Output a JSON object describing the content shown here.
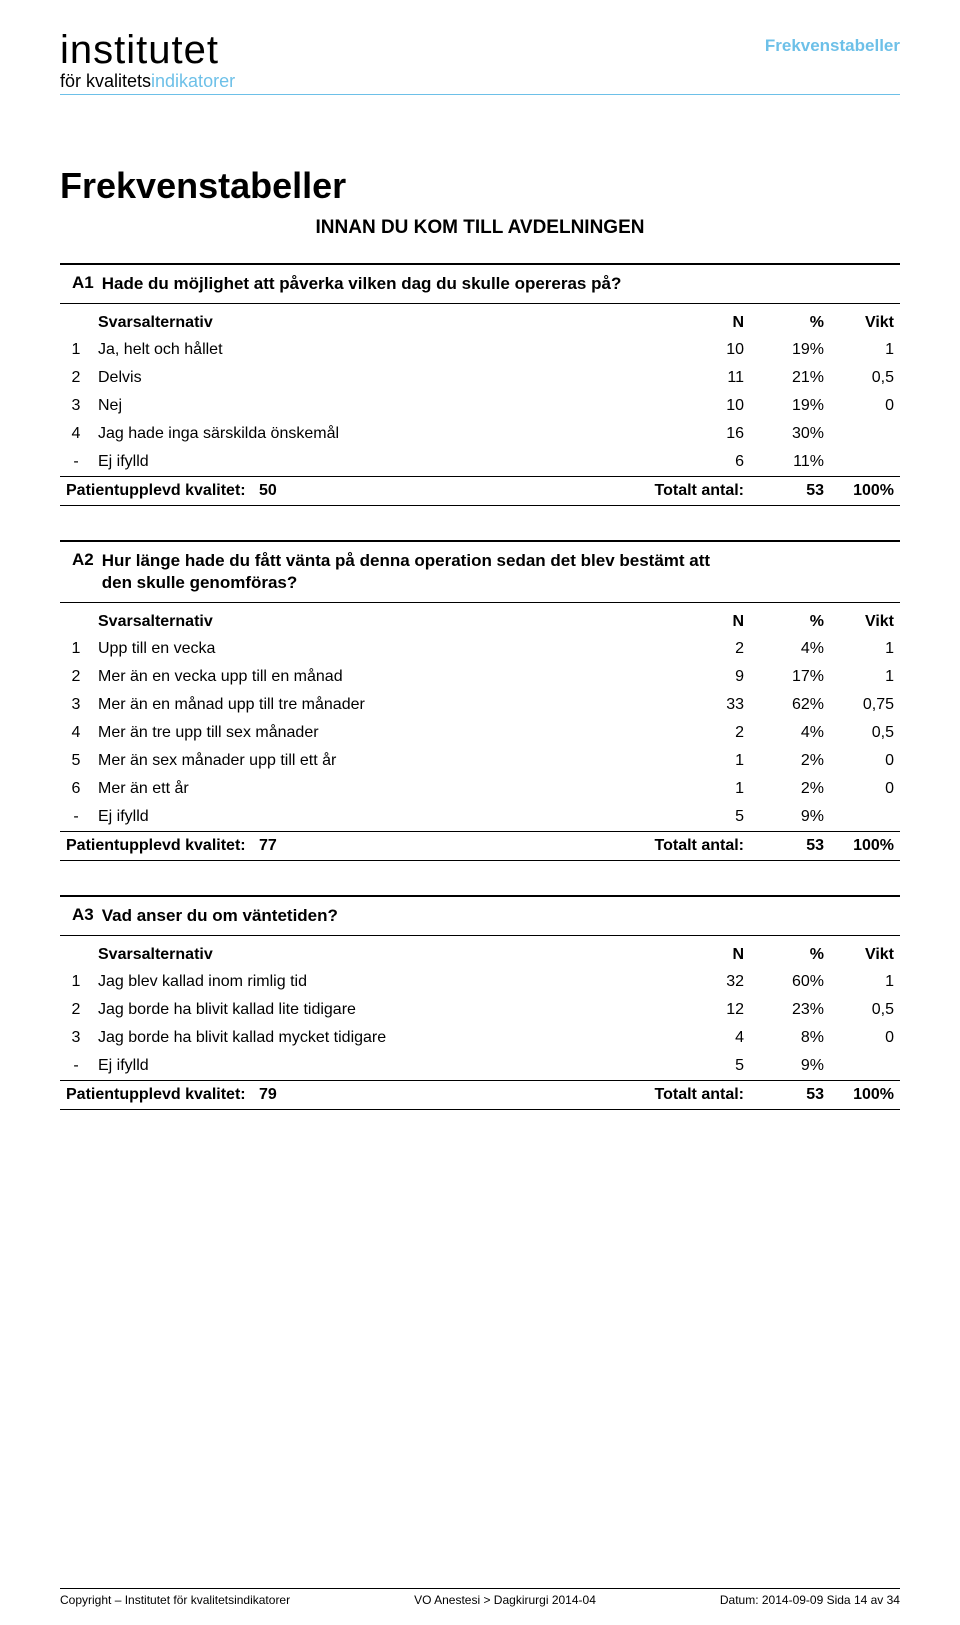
{
  "header": {
    "logo_line1": "institutet",
    "logo_line2_pre": "för kvalitets",
    "logo_line2_accent": "indikatorer",
    "section_tag": "Frekvenstabeller"
  },
  "page_title": "Frekvenstabeller",
  "section_heading": "INNAN DU KOM TILL AVDELNINGEN",
  "col_headers": {
    "alt": "Svarsalternativ",
    "n": "N",
    "pct": "%",
    "vikt": "Vikt"
  },
  "summary_labels": {
    "puk": "Patientupplevd kvalitet:",
    "totalt": "Totalt antal:"
  },
  "questions": [
    {
      "code": "A1",
      "text": "Hade du möjlighet att påverka vilken dag du skulle opereras på?",
      "rows": [
        {
          "idx": "1",
          "label": "Ja, helt och hållet",
          "n": "10",
          "pct": "19%",
          "vikt": "1"
        },
        {
          "idx": "2",
          "label": "Delvis",
          "n": "11",
          "pct": "21%",
          "vikt": "0,5"
        },
        {
          "idx": "3",
          "label": "Nej",
          "n": "10",
          "pct": "19%",
          "vikt": "0"
        },
        {
          "idx": "4",
          "label": "Jag hade inga särskilda önskemål",
          "n": "16",
          "pct": "30%",
          "vikt": ""
        },
        {
          "idx": "-",
          "label": "Ej ifylld",
          "n": "6",
          "pct": "11%",
          "vikt": ""
        }
      ],
      "puk": "50",
      "totalt_n": "53",
      "totalt_pct": "100%"
    },
    {
      "code": "A2",
      "text": "Hur länge hade du fått vänta på denna operation sedan det blev bestämt att den skulle genomföras?",
      "rows": [
        {
          "idx": "1",
          "label": "Upp till en vecka",
          "n": "2",
          "pct": "4%",
          "vikt": "1"
        },
        {
          "idx": "2",
          "label": "Mer än en vecka upp till en månad",
          "n": "9",
          "pct": "17%",
          "vikt": "1"
        },
        {
          "idx": "3",
          "label": "Mer än en månad upp till tre månader",
          "n": "33",
          "pct": "62%",
          "vikt": "0,75"
        },
        {
          "idx": "4",
          "label": "Mer än tre upp till sex månader",
          "n": "2",
          "pct": "4%",
          "vikt": "0,5"
        },
        {
          "idx": "5",
          "label": "Mer än sex månader upp till ett år",
          "n": "1",
          "pct": "2%",
          "vikt": "0"
        },
        {
          "idx": "6",
          "label": "Mer än ett år",
          "n": "1",
          "pct": "2%",
          "vikt": "0"
        },
        {
          "idx": "-",
          "label": "Ej ifylld",
          "n": "5",
          "pct": "9%",
          "vikt": ""
        }
      ],
      "puk": "77",
      "totalt_n": "53",
      "totalt_pct": "100%"
    },
    {
      "code": "A3",
      "text": "Vad anser du om väntetiden?",
      "rows": [
        {
          "idx": "1",
          "label": "Jag blev kallad inom rimlig tid",
          "n": "32",
          "pct": "60%",
          "vikt": "1"
        },
        {
          "idx": "2",
          "label": "Jag borde ha blivit kallad lite tidigare",
          "n": "12",
          "pct": "23%",
          "vikt": "0,5"
        },
        {
          "idx": "3",
          "label": "Jag borde ha blivit kallad mycket tidigare",
          "n": "4",
          "pct": "8%",
          "vikt": "0"
        },
        {
          "idx": "-",
          "label": "Ej ifylld",
          "n": "5",
          "pct": "9%",
          "vikt": ""
        }
      ],
      "puk": "79",
      "totalt_n": "53",
      "totalt_pct": "100%"
    }
  ],
  "footer": {
    "left": "Copyright – Institutet för kvalitetsindikatorer",
    "center": "VO Anestesi > Dagkirurgi 2014-04",
    "right": "Datum: 2014-09-09   Sida 14 av 34"
  }
}
